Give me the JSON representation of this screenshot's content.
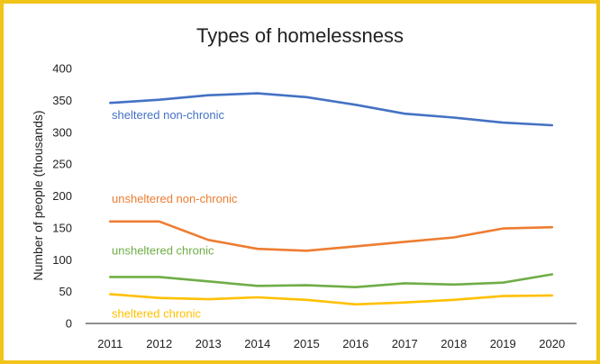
{
  "colors": {
    "frame": "#f0c419",
    "axis": "#222222"
  },
  "chart_data": {
    "type": "line",
    "title": "Types of homelessness",
    "xlabel": "",
    "ylabel": "Number of people (thousands)",
    "ylim": [
      0,
      400
    ],
    "yticks": [
      "0",
      "50",
      "100",
      "150",
      "200",
      "250",
      "300",
      "350",
      "400"
    ],
    "categories": [
      "2011",
      "2012",
      "2013",
      "2014",
      "2015",
      "2016",
      "2017",
      "2018",
      "2019",
      "2020"
    ],
    "grid": false,
    "legend": "inline labels",
    "series": [
      {
        "name": "sheltered non-chronic",
        "color": "#4472c4",
        "values": [
          346,
          351,
          358,
          361,
          355,
          343,
          329,
          323,
          315,
          311
        ]
      },
      {
        "name": "unsheltered non-chronic",
        "color": "#ed7d31",
        "values": [
          160,
          160,
          131,
          117,
          114,
          121,
          128,
          135,
          149,
          151
        ]
      },
      {
        "name": "unsheltered chronic",
        "color": "#70ad47",
        "values": [
          73,
          73,
          66,
          59,
          60,
          57,
          63,
          61,
          64,
          77
        ]
      },
      {
        "name": "sheltered chronic",
        "color": "#ffc000",
        "values": [
          46,
          40,
          38,
          41,
          37,
          30,
          33,
          37,
          43,
          44
        ]
      }
    ]
  }
}
